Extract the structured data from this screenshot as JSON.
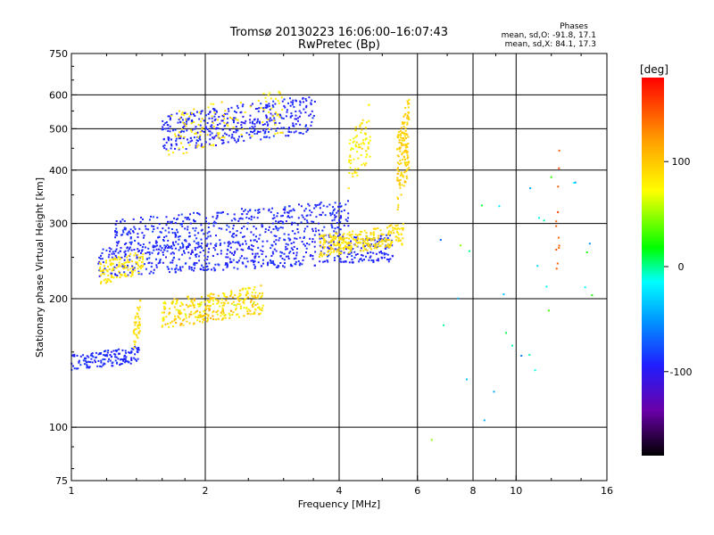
{
  "chart_data": {
    "type": "scatter",
    "title": "Tromsø 20130223 16:06:00–16:07:43",
    "subtitle": "RwPretec (Bp)",
    "xlabel": "Frequency [MHz]",
    "ylabel": "Stationary phase Virtual Height [km]",
    "x_scale": "log",
    "y_scale": "log",
    "xlim": [
      1,
      16
    ],
    "ylim": [
      75,
      750
    ],
    "x_ticks": [
      1,
      2,
      4,
      6,
      8,
      10,
      16
    ],
    "x_tick_labels": [
      "1",
      "2",
      "4",
      "6",
      "8",
      "10",
      "16"
    ],
    "y_ticks": [
      75,
      100,
      200,
      300,
      400,
      500,
      600,
      750
    ],
    "y_tick_labels": [
      "75",
      "100",
      "200",
      "300",
      "400",
      "500",
      "600",
      "750"
    ],
    "x_minor_ticks": [
      1.2,
      1.4,
      1.6,
      1.8,
      2.5,
      3,
      3.5,
      5,
      7,
      9,
      12,
      14
    ],
    "y_minor_ticks": [
      80,
      90,
      150,
      250,
      350,
      450,
      550,
      650,
      700
    ],
    "grid": true,
    "stats": {
      "heading": "Phases",
      "line1": "mean, sd,O: -91.8, 17.1",
      "line2": "mean, sd,X: 84.1, 17.3"
    },
    "colorbar": {
      "label": "[deg]",
      "range": [
        -180,
        180
      ],
      "ticks": [
        100,
        0,
        -100
      ],
      "tick_labels": [
        "100",
        "0",
        "-100"
      ]
    },
    "clusters": [
      {
        "desc": "E-region low trace",
        "freq": [
          1.0,
          1.42
        ],
        "height": [
          135,
          155
        ],
        "phase": -90,
        "spread": 12,
        "n": 150
      },
      {
        "desc": "sporadic low near 1.4 MHz",
        "freq": [
          1.38,
          1.43
        ],
        "height": [
          150,
          200
        ],
        "phase": 90,
        "spread": 15,
        "n": 40
      },
      {
        "desc": "lower O mode trace",
        "freq": [
          1.15,
          5.3
        ],
        "height": [
          225,
          285
        ],
        "phase": -92,
        "spread": 15,
        "n": 600
      },
      {
        "desc": "upper O mode trace",
        "freq": [
          1.25,
          4.2
        ],
        "height": [
          255,
          340
        ],
        "phase": -90,
        "spread": 15,
        "n": 450
      },
      {
        "desc": "X mode trace",
        "freq": [
          3.6,
          5.6
        ],
        "height": [
          250,
          300
        ],
        "phase": 88,
        "spread": 15,
        "n": 280
      },
      {
        "desc": "lower X patch",
        "freq": [
          1.15,
          1.45
        ],
        "height": [
          215,
          260
        ],
        "phase": 85,
        "spread": 15,
        "n": 120
      },
      {
        "desc": "mid-height mixed patch",
        "freq": [
          1.6,
          2.7
        ],
        "height": [
          170,
          215
        ],
        "phase": 90,
        "spread": 40,
        "n": 320
      },
      {
        "desc": "second-hop O echo",
        "freq": [
          1.6,
          3.55
        ],
        "height": [
          440,
          600
        ],
        "phase": -92,
        "spread": 14,
        "n": 400
      },
      {
        "desc": "second-hop X scatter",
        "freq": [
          1.65,
          3.0
        ],
        "height": [
          430,
          620
        ],
        "phase": 85,
        "spread": 20,
        "n": 120
      },
      {
        "desc": "X column near 5.6 MHz",
        "freq": [
          5.4,
          5.75
        ],
        "height": [
          320,
          600
        ],
        "phase": 95,
        "spread": 15,
        "n": 150
      },
      {
        "desc": "X column near 4.4 MHz",
        "freq": [
          4.2,
          4.7
        ],
        "height": [
          360,
          580
        ],
        "phase": 80,
        "spread": 25,
        "n": 80
      },
      {
        "desc": "high frequency sparse",
        "freq": [
          6,
          15
        ],
        "height": [
          80,
          520
        ],
        "phase": 0,
        "spread": 120,
        "n": 30
      },
      {
        "desc": "red interference column",
        "freq": [
          12.3,
          12.5
        ],
        "height": [
          180,
          460
        ],
        "phase": 150,
        "spread": 20,
        "n": 12
      }
    ]
  }
}
